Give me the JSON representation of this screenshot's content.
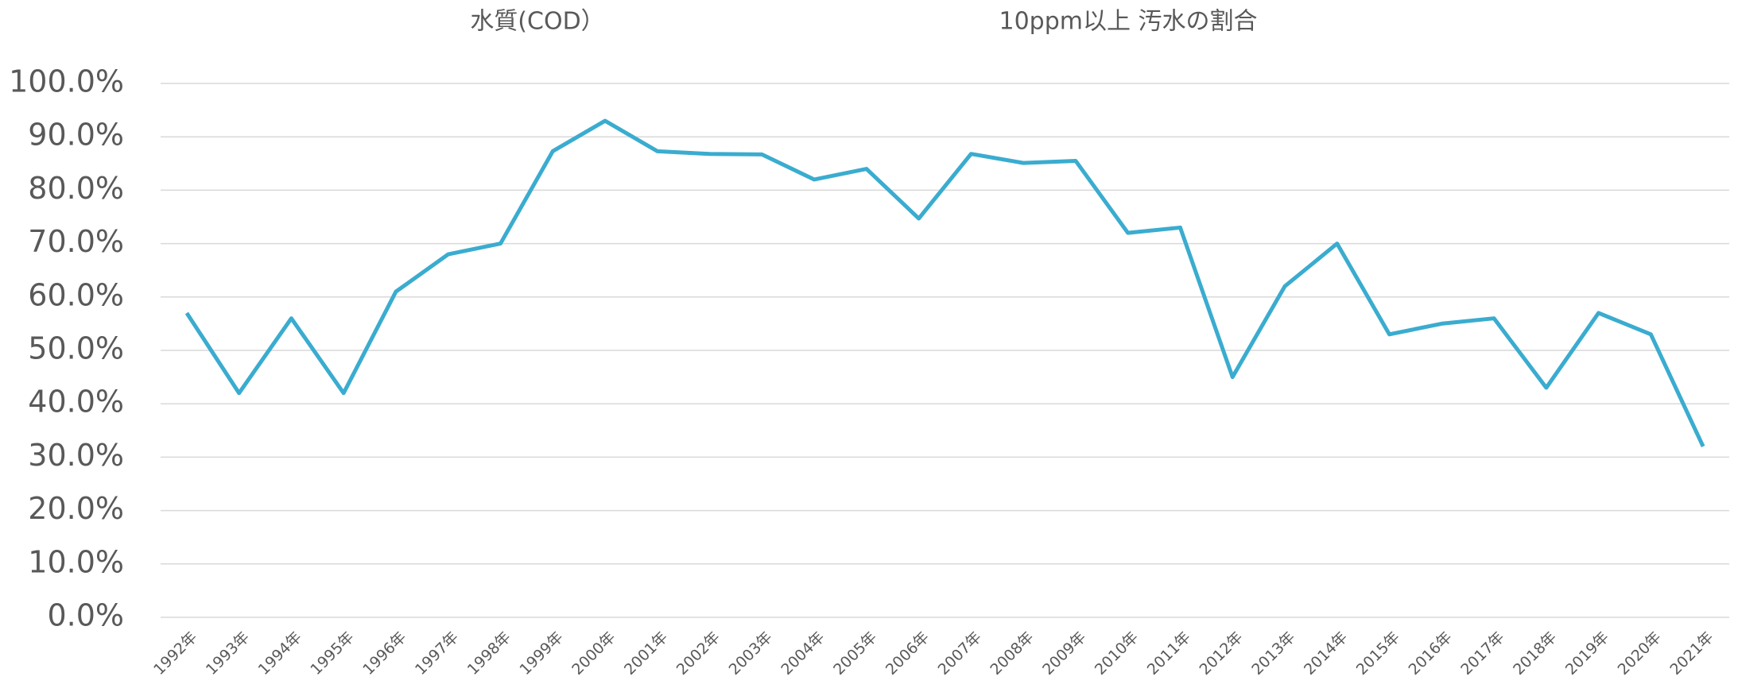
{
  "chart_data": {
    "type": "line",
    "title": "水質(COD）",
    "subtitle": "10ppm以上 汚水の割合",
    "categories": [
      "1992年",
      "1993年",
      "1994年",
      "1995年",
      "1996年",
      "1997年",
      "1998年",
      "1999年",
      "2000年",
      "2001年",
      "2002年",
      "2003年",
      "2004年",
      "2005年",
      "2006年",
      "2007年",
      "2008年",
      "2009年",
      "2010年",
      "2011年",
      "2012年",
      "2013年",
      "2014年",
      "2015年",
      "2016年",
      "2017年",
      "2018年",
      "2019年",
      "2020年",
      "2021年"
    ],
    "series": [
      {
        "color": "#3aaccf",
        "values": [
          57,
          42,
          56,
          42,
          61,
          68,
          70,
          87.3,
          93,
          87.3,
          86.8,
          86.7,
          82,
          84,
          74.7,
          86.8,
          85.1,
          85.5,
          72,
          73,
          45,
          62,
          70,
          53,
          55,
          56,
          43,
          57,
          53,
          32
        ]
      }
    ],
    "ylim": [
      0,
      100
    ],
    "yticks": [
      {
        "value": 0,
        "label": "0.0%"
      },
      {
        "value": 10,
        "label": "10.0%"
      },
      {
        "value": 20,
        "label": "20.0%"
      },
      {
        "value": 30,
        "label": "30.0%"
      },
      {
        "value": 40,
        "label": "40.0%"
      },
      {
        "value": 50,
        "label": "50.0%"
      },
      {
        "value": 60,
        "label": "60.0%"
      },
      {
        "value": 70,
        "label": "70.0%"
      },
      {
        "value": 80,
        "label": "80.0%"
      },
      {
        "value": 90,
        "label": "90.0%"
      },
      {
        "value": 100,
        "label": "100.0%"
      }
    ],
    "grid": true
  }
}
